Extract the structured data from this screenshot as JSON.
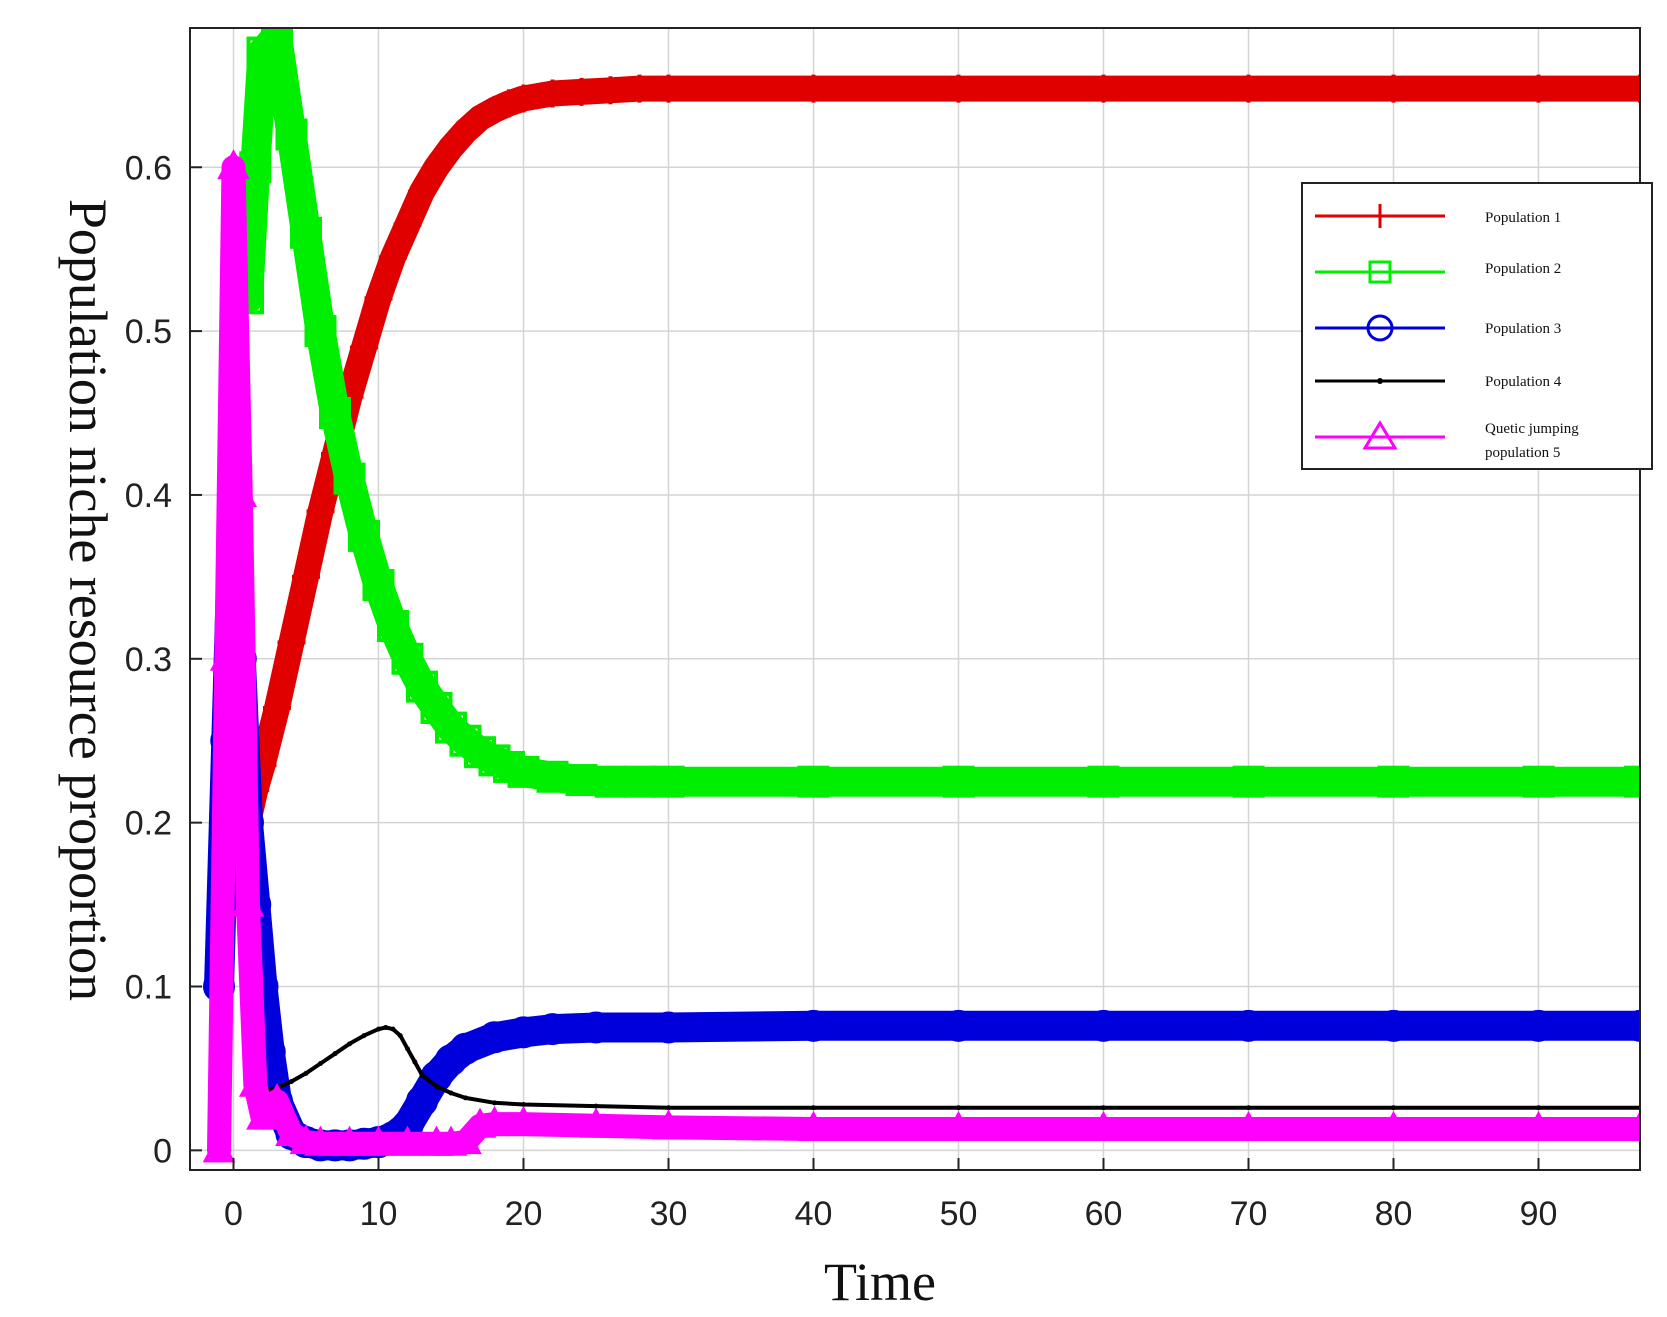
{
  "chart_data": {
    "type": "line",
    "xlabel": "Time",
    "ylabel": "Population niche resource proportion",
    "xlim": [
      -3,
      97
    ],
    "ylim": [
      -0.012,
      0.685
    ],
    "xticks": [
      0,
      10,
      20,
      30,
      40,
      50,
      60,
      70,
      80,
      90
    ],
    "yticks": [
      0,
      0.1,
      0.2,
      0.3,
      0.4,
      0.5,
      0.6
    ],
    "xtick_labels": [
      "0",
      "10",
      "20",
      "30",
      "40",
      "50",
      "60",
      "70",
      "80",
      "90"
    ],
    "ytick_labels": [
      "0",
      "0.1",
      "0.2",
      "0.3",
      "0.4",
      "0.5",
      "0.6"
    ],
    "grid": true,
    "legend_position": "top-right",
    "series": [
      {
        "name": "Population 1",
        "color": "#e00000",
        "marker": "plus",
        "x": [
          1,
          1.5,
          2,
          3,
          4,
          5,
          6,
          7,
          8,
          9,
          10,
          11,
          12,
          13,
          14,
          15,
          16,
          17,
          18,
          19,
          20,
          22,
          24,
          26,
          28,
          30,
          40,
          50,
          60,
          70,
          80,
          90,
          97
        ],
        "y": [
          0.2,
          0.22,
          0.235,
          0.27,
          0.31,
          0.35,
          0.39,
          0.425,
          0.46,
          0.49,
          0.52,
          0.545,
          0.565,
          0.585,
          0.6,
          0.612,
          0.622,
          0.63,
          0.635,
          0.639,
          0.642,
          0.645,
          0.646,
          0.647,
          0.648,
          0.648,
          0.648,
          0.648,
          0.648,
          0.648,
          0.648,
          0.648,
          0.648
        ]
      },
      {
        "name": "Population 2",
        "color": "#00ee00",
        "marker": "square",
        "x": [
          1,
          1.5,
          2,
          3,
          4,
          5,
          6,
          7,
          8,
          9,
          10,
          11,
          12,
          13,
          14,
          15,
          16,
          17,
          18,
          19,
          20,
          22,
          24,
          26,
          28,
          30,
          40,
          50,
          60,
          70,
          80,
          90,
          97
        ],
        "y": [
          0.52,
          0.6,
          0.67,
          0.68,
          0.62,
          0.56,
          0.5,
          0.45,
          0.41,
          0.375,
          0.345,
          0.32,
          0.3,
          0.283,
          0.27,
          0.258,
          0.25,
          0.243,
          0.238,
          0.234,
          0.231,
          0.228,
          0.226,
          0.225,
          0.225,
          0.225,
          0.225,
          0.225,
          0.225,
          0.225,
          0.225,
          0.225,
          0.225
        ]
      },
      {
        "name": "Population 3",
        "color": "#0000dd",
        "marker": "circle",
        "x": [
          -1,
          -0.5,
          0,
          0.5,
          1,
          1.5,
          2,
          2.5,
          3,
          4,
          5,
          6,
          7,
          8,
          9,
          10,
          11,
          12,
          13,
          14,
          15,
          16,
          18,
          20,
          22,
          25,
          30,
          40,
          50,
          60,
          70,
          80,
          90,
          97
        ],
        "y": [
          0.1,
          0.25,
          0.4,
          0.3,
          0.2,
          0.15,
          0.1,
          0.06,
          0.03,
          0.01,
          0.005,
          0.003,
          0.003,
          0.003,
          0.004,
          0.005,
          0.008,
          0.015,
          0.03,
          0.045,
          0.055,
          0.062,
          0.069,
          0.072,
          0.074,
          0.075,
          0.075,
          0.076,
          0.076,
          0.076,
          0.076,
          0.076,
          0.076,
          0.076
        ]
      },
      {
        "name": "Population 4",
        "color": "#000000",
        "marker": "dot",
        "x": [
          1.5,
          2,
          2.5,
          3,
          4,
          5,
          6,
          7,
          8,
          9,
          10,
          10.5,
          11,
          11.5,
          12,
          12.5,
          13,
          14,
          15,
          16,
          18,
          20,
          25,
          30,
          40,
          50,
          60,
          70,
          80,
          90,
          97
        ],
        "y": [
          0.035,
          0.036,
          0.037,
          0.038,
          0.042,
          0.047,
          0.053,
          0.059,
          0.065,
          0.07,
          0.074,
          0.075,
          0.074,
          0.07,
          0.062,
          0.054,
          0.046,
          0.039,
          0.035,
          0.032,
          0.029,
          0.028,
          0.027,
          0.026,
          0.026,
          0.026,
          0.026,
          0.026,
          0.026,
          0.026,
          0.026
        ]
      },
      {
        "name": "Quetic jumping population 5",
        "color": "#ff00ff",
        "marker": "triangle",
        "x": [
          -1,
          -0.5,
          0,
          0.5,
          1,
          1.5,
          2,
          3,
          4,
          5,
          6,
          8,
          10,
          12,
          14,
          15,
          16,
          17,
          18,
          20,
          25,
          30,
          40,
          50,
          60,
          70,
          80,
          90,
          97
        ],
        "y": [
          0.0,
          0.3,
          0.6,
          0.4,
          0.15,
          0.04,
          0.02,
          0.03,
          0.01,
          0.005,
          0.004,
          0.004,
          0.004,
          0.004,
          0.004,
          0.004,
          0.005,
          0.015,
          0.016,
          0.016,
          0.015,
          0.014,
          0.013,
          0.013,
          0.013,
          0.013,
          0.013,
          0.013,
          0.013
        ]
      }
    ],
    "legend_entries": [
      "Population 1",
      "Population 2",
      "Population 3",
      "Population 4",
      "Quetic jumping",
      "population 5"
    ]
  }
}
